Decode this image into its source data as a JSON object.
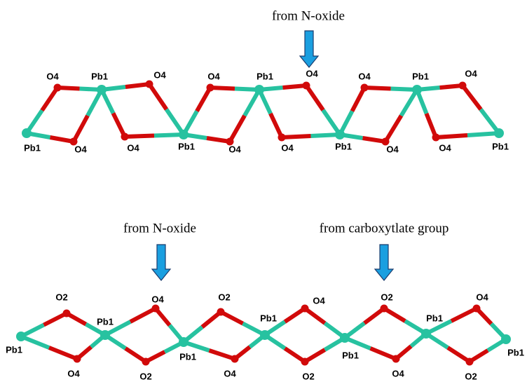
{
  "top_chain": {
    "annotation": "from N-oxide",
    "atom_labels": [
      "O4",
      "Pb1",
      "O4",
      "O4",
      "Pb1",
      "O4",
      "O4",
      "Pb1",
      "O4",
      "Pb1",
      "O4",
      "O4",
      "Pb1",
      "O4",
      "O4",
      "Pb1",
      "O4",
      "O4",
      "Pb1"
    ]
  },
  "bottom_chain": {
    "annotations": [
      "from N-oxide",
      "from carboxytlate group"
    ],
    "atom_labels": [
      "O2",
      "Pb1",
      "O4",
      "O2",
      "Pb1",
      "O4",
      "O2",
      "Pb1",
      "O4",
      "Pb1",
      "O4",
      "O2",
      "Pb1",
      "O4",
      "O2",
      "Pb1",
      "O4",
      "O2",
      "Pb1"
    ]
  }
}
